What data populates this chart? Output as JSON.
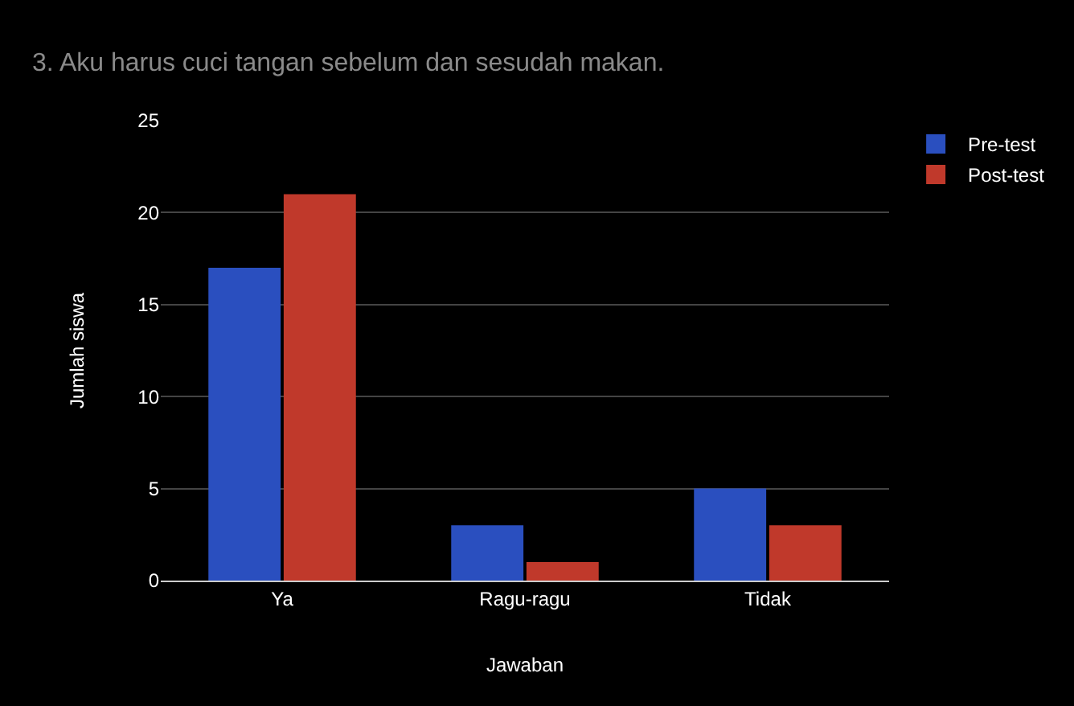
{
  "chart_data": {
    "type": "bar",
    "title": "3. Aku harus cuci tangan sebelum dan sesudah makan.",
    "xlabel": "Jawaban",
    "ylabel": "Jumlah siswa",
    "categories": [
      "Ya",
      "Ragu-ragu",
      "Tidak"
    ],
    "series": [
      {
        "name": "Pre-test",
        "color": "#2a4fbf",
        "values": [
          17,
          3,
          5
        ]
      },
      {
        "name": "Post-test",
        "color": "#c0392b",
        "values": [
          21,
          1,
          3
        ]
      }
    ],
    "ylim": [
      0,
      25
    ],
    "yticks": [
      0,
      5,
      10,
      15,
      20,
      25
    ],
    "grid": "y",
    "legend": "top right"
  }
}
